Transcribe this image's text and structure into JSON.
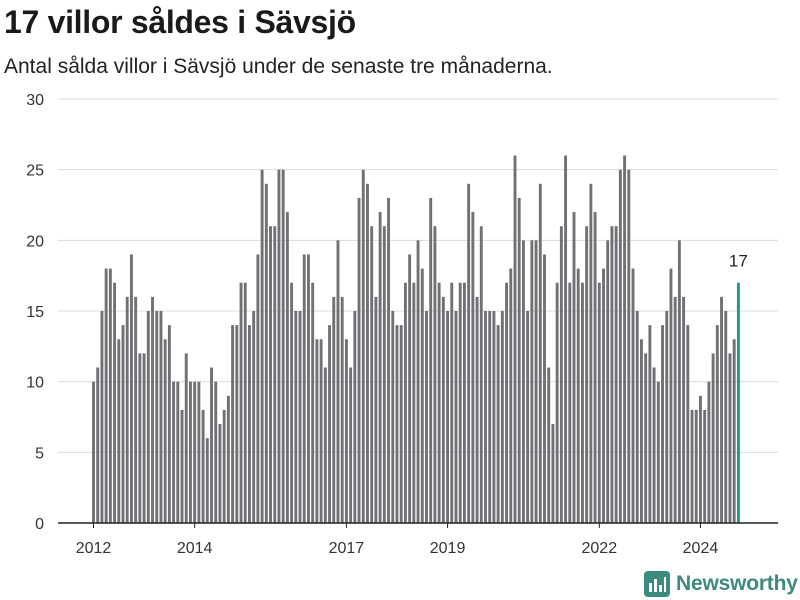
{
  "title": "17 villor såldes i Sävsjö",
  "subtitle": "Antal sålda villor i Sävsjö under de senaste tre månaderna.",
  "brand": {
    "name": "Newsworthy",
    "icon": "newsworthy-logo-icon",
    "color": "#3d8a7f"
  },
  "chart_data": {
    "type": "bar",
    "title": "17 villor såldes i Sävsjö",
    "xlabel": "",
    "ylabel": "",
    "ylim": [
      0,
      30
    ],
    "yticks": [
      0,
      5,
      10,
      15,
      20,
      25,
      30
    ],
    "xticks": [
      {
        "label": "2012",
        "year": 2012
      },
      {
        "label": "2014",
        "year": 2014
      },
      {
        "label": "2017",
        "year": 2017
      },
      {
        "label": "2019",
        "year": 2019
      },
      {
        "label": "2022",
        "year": 2022
      },
      {
        "label": "2024",
        "year": 2024
      }
    ],
    "grid": true,
    "start_year": 2012,
    "start_month": 1,
    "bar_color": "#717074",
    "highlight_color": "#21958b",
    "annotation": {
      "label": "17",
      "value": 17
    },
    "values": [
      10,
      11,
      15,
      18,
      18,
      17,
      13,
      14,
      16,
      19,
      16,
      12,
      12,
      15,
      16,
      15,
      15,
      13,
      14,
      10,
      10,
      8,
      12,
      10,
      10,
      10,
      8,
      6,
      11,
      10,
      7,
      8,
      9,
      14,
      14,
      17,
      17,
      14,
      15,
      19,
      25,
      24,
      21,
      21,
      25,
      25,
      22,
      17,
      15,
      15,
      19,
      19,
      17,
      13,
      13,
      11,
      14,
      16,
      20,
      16,
      13,
      11,
      15,
      23,
      25,
      24,
      21,
      16,
      22,
      21,
      23,
      15,
      14,
      14,
      17,
      19,
      17,
      20,
      18,
      15,
      23,
      21,
      17,
      16,
      15,
      17,
      15,
      17,
      17,
      24,
      22,
      16,
      21,
      15,
      15,
      15,
      14,
      15,
      17,
      18,
      26,
      23,
      20,
      15,
      20,
      20,
      24,
      19,
      11,
      7,
      17,
      21,
      26,
      17,
      22,
      18,
      17,
      21,
      24,
      22,
      17,
      18,
      20,
      21,
      21,
      25,
      26,
      25,
      18,
      15,
      13,
      12,
      14,
      11,
      10,
      14,
      15,
      18,
      16,
      20,
      16,
      14,
      8,
      8,
      9,
      8,
      10,
      12,
      14,
      16,
      15,
      12,
      13,
      17
    ]
  }
}
